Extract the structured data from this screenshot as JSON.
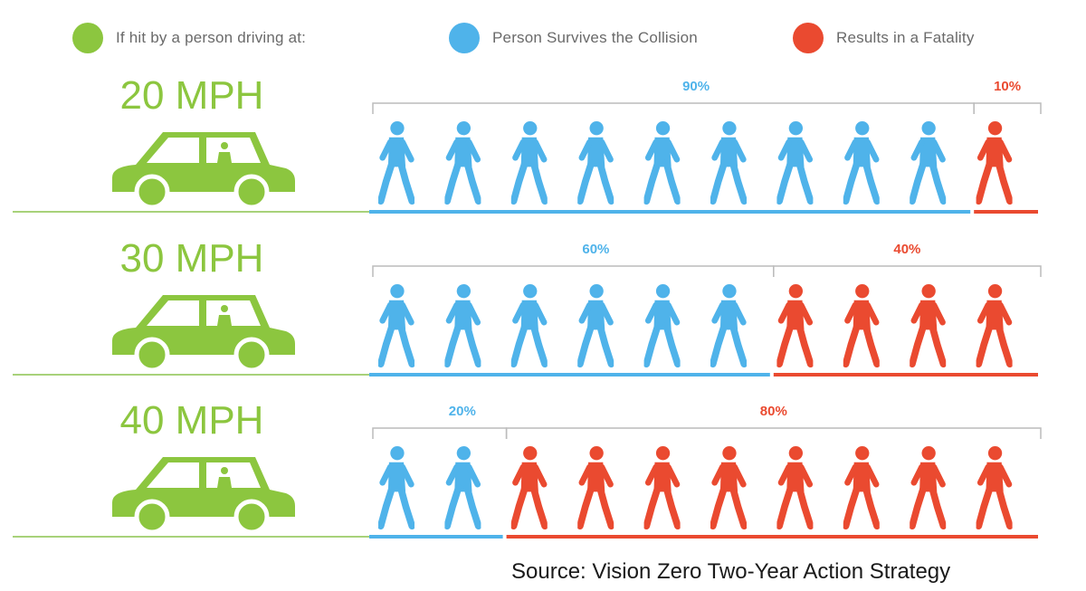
{
  "legend": {
    "driver_label": "If hit by a person driving at:",
    "survive_label": "Person Survives the Collision",
    "fatal_label": "Results in a Fatality"
  },
  "colors": {
    "green": "#8cc63f",
    "blue": "#4fb3ea",
    "red": "#ea4a30",
    "bracket": "#bcbcbc",
    "ground": "#a8d27a"
  },
  "icons": {
    "car": "car-icon",
    "person": "walking-person-icon"
  },
  "source": "Source: Vision Zero Two-Year Action Strategy",
  "chart_data": {
    "type": "bar",
    "title": "",
    "categories": [
      "20 MPH",
      "30 MPH",
      "40 MPH"
    ],
    "series": [
      {
        "name": "Person Survives the Collision",
        "values": [
          90,
          60,
          20
        ],
        "labels": [
          "90%",
          "60%",
          "20%"
        ]
      },
      {
        "name": "Results in a Fatality",
        "values": [
          10,
          40,
          80
        ],
        "labels": [
          "10%",
          "40%",
          "80%"
        ]
      }
    ],
    "icons_per_row": 10,
    "unit": "%"
  }
}
